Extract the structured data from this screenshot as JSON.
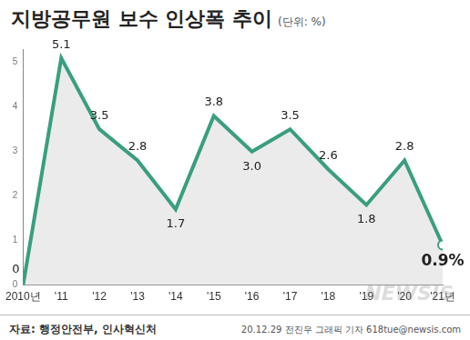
{
  "chart_data": {
    "type": "line",
    "title": "지방공무원 보수 인상폭 추이",
    "subtitle": "(단위: %)",
    "categories": [
      "2010년",
      "'11",
      "'12",
      "'13",
      "'14",
      "'15",
      "'16",
      "'17",
      "'18",
      "'19",
      "'20",
      "'21년"
    ],
    "values": [
      0,
      5.1,
      3.5,
      2.8,
      1.7,
      3.8,
      3.0,
      3.5,
      2.6,
      1.8,
      2.8,
      0.9
    ],
    "value_labels": [
      "0",
      "5.1",
      "3.5",
      "2.8",
      "1.7",
      "3.8",
      "3.0",
      "3.5",
      "2.6",
      "1.8",
      "2.8",
      "0.9%"
    ],
    "data_labels": true,
    "color": "#3a9e80",
    "ylim": [
      0,
      5.3
    ],
    "yticks": [
      0,
      1,
      2,
      3,
      4,
      5
    ],
    "grid": false,
    "source": "자료: 행정안전부, 인사혁신처",
    "credit": "20.12.29 전진우 그래픽 기자 618tue@newsis.com",
    "watermark": "NEWSIS"
  }
}
